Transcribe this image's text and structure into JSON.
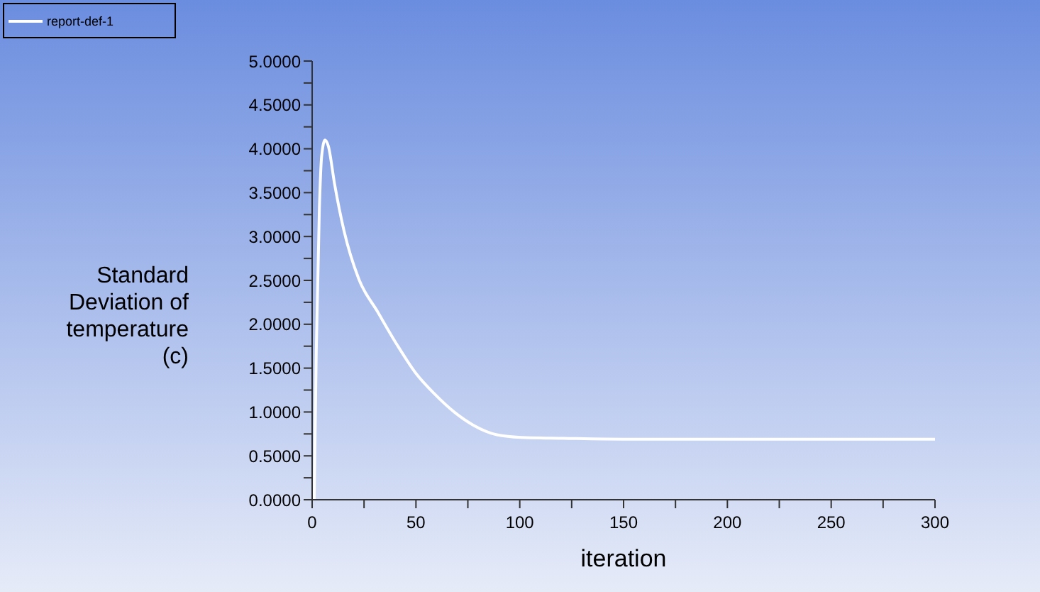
{
  "chart_data": {
    "type": "line",
    "xlabel": "iteration",
    "ylabel": "Standard Deviation of temperature (c)",
    "x": [
      1,
      2,
      3.5,
      4.6,
      6.2,
      7.8,
      10.8,
      15.4,
      22.4,
      31.6,
      40.8,
      50,
      59.2,
      68.4,
      77.6,
      89,
      100.7,
      121,
      150,
      200,
      250,
      300
    ],
    "series": [
      {
        "name": "report-def-1",
        "color": "#ffffff",
        "values": [
          0,
          1.71,
          3.33,
          3.92,
          4.1,
          4.03,
          3.6,
          3.06,
          2.52,
          2.14,
          1.77,
          1.44,
          1.2,
          1,
          0.85,
          0.74,
          0.71,
          0.7,
          0.69,
          0.69,
          0.69,
          0.69
        ]
      }
    ],
    "xlim": [
      0,
      300
    ],
    "xticks": [
      0,
      {
        "value": 25,
        "label": null
      },
      50,
      {
        "value": 75,
        "label": null
      },
      100,
      {
        "value": 125,
        "label": null
      },
      150,
      {
        "value": 175,
        "label": null
      },
      200,
      {
        "value": 225,
        "label": null
      },
      250,
      {
        "value": 275,
        "label": null
      },
      300
    ],
    "ylim": [
      0,
      5
    ],
    "yticks": [
      {
        "value": 0,
        "label": "0.0000"
      },
      {
        "value": 0.25,
        "label": null
      },
      {
        "value": 0.5,
        "label": "0.5000"
      },
      {
        "value": 0.75,
        "label": null
      },
      {
        "value": 1,
        "label": "1.0000"
      },
      {
        "value": 1.25,
        "label": null
      },
      {
        "value": 1.5,
        "label": "1.5000"
      },
      {
        "value": 1.75,
        "label": null
      },
      {
        "value": 2,
        "label": "2.0000"
      },
      {
        "value": 2.25,
        "label": null
      },
      {
        "value": 2.5,
        "label": "2.5000"
      },
      {
        "value": 2.75,
        "label": null
      },
      {
        "value": 3,
        "label": "3.0000"
      },
      {
        "value": 3.25,
        "label": null
      },
      {
        "value": 3.5,
        "label": "3.5000"
      },
      {
        "value": 3.75,
        "label": null
      },
      {
        "value": 4,
        "label": "4.0000"
      },
      {
        "value": 4.25,
        "label": null
      },
      {
        "value": 4.5,
        "label": "4.5000"
      },
      {
        "value": 4.75,
        "label": null
      },
      {
        "value": 5,
        "label": "5.0000"
      }
    ],
    "grid": false,
    "legend": "top left",
    "marker": "none",
    "line_style": "solid"
  }
}
